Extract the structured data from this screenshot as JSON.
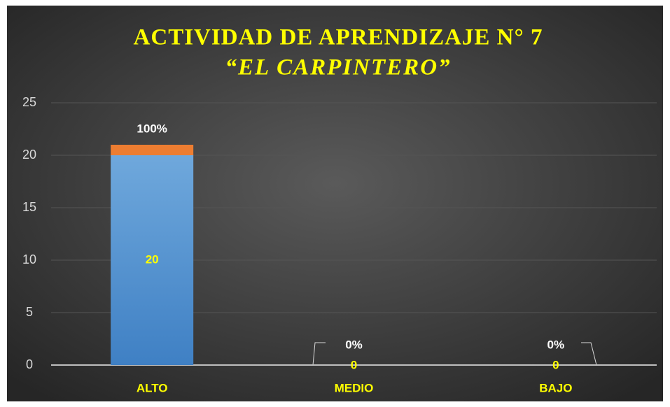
{
  "chart_data": {
    "type": "stacked_bar",
    "title": "ACTIVIDAD DE APRENDIZAJE N° 7",
    "subtitle": "“EL CARPINTERO”",
    "categories": [
      "ALTO",
      "MEDIO",
      "BAJO"
    ],
    "series": [
      {
        "color": "#5b9bd5",
        "values": [
          20,
          0,
          0
        ]
      },
      {
        "color": "#ed7d31",
        "values": [
          1,
          0,
          0
        ],
        "value_labels": [
          "100%",
          "0%",
          "0%"
        ]
      }
    ],
    "ylim": [
      0,
      25
    ],
    "yticks": [
      0,
      5,
      10,
      15,
      20,
      25
    ],
    "grid": true
  }
}
